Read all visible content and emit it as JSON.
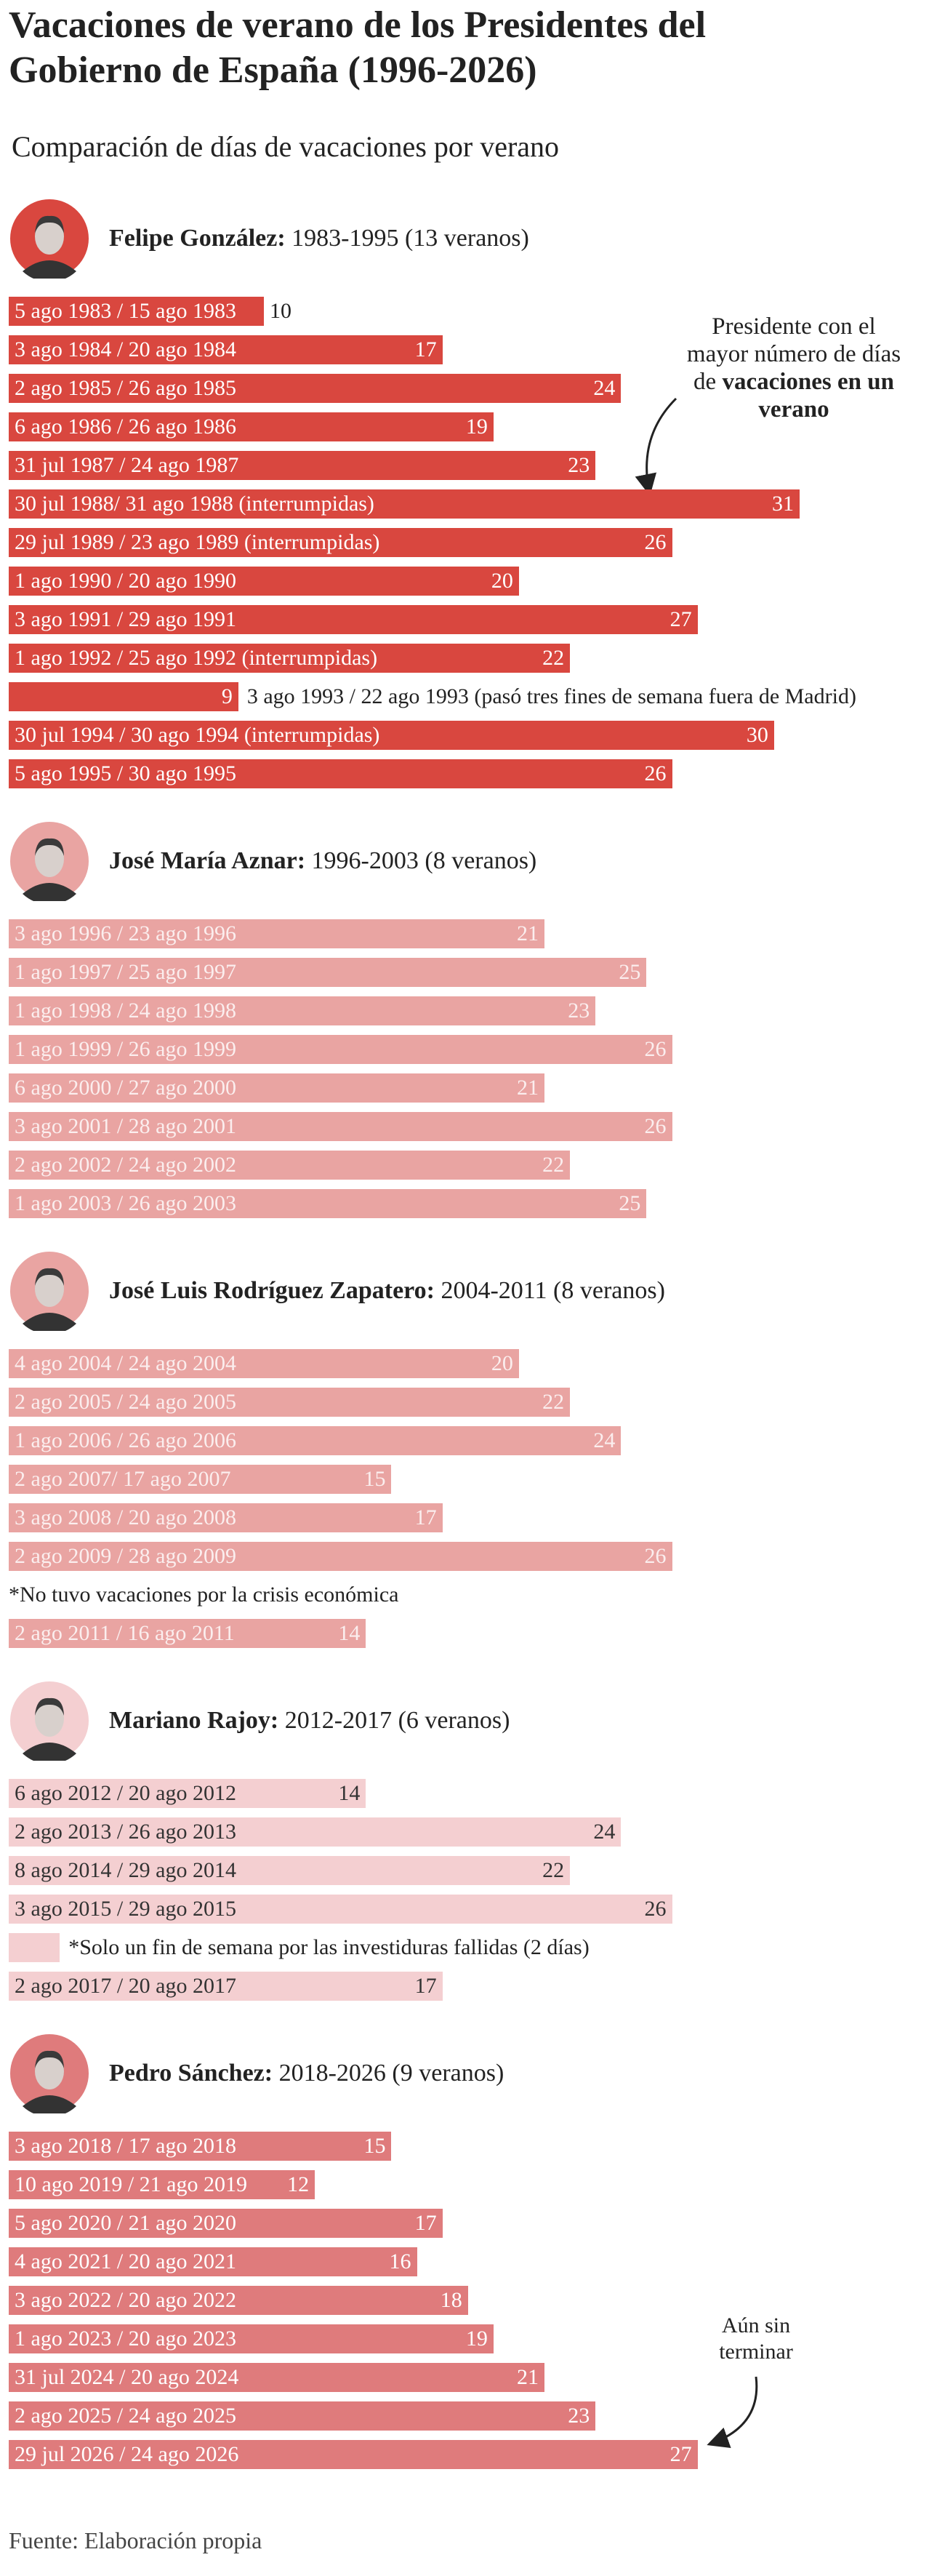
{
  "chart_data": {
    "type": "bar",
    "orientation": "horizontal",
    "title": "Vacaciones de verano de los Presidentes del Gobierno de España (1996-2026)",
    "subtitle": "Comparación de días de vacaciones por verano",
    "source": "Fuente: Elaboración propia",
    "groups": [
      {
        "name": "Felipe González:",
        "period": "1983-1995 (13 veranos)",
        "color": "#d9473f",
        "label_color": "#ffffff",
        "labels": [
          "5 ago 1983 / 15 ago 1983",
          "3 ago 1984 / 20 ago 1984",
          "2 ago 1985 / 26 ago 1985",
          "6 ago 1986 / 26 ago 1986",
          "31 jul 1987 / 24 ago 1987",
          "30 jul 1988/ 31 ago 1988 (interrumpidas)",
          "29 jul 1989 / 23 ago 1989 (interrumpidas)",
          "1 ago 1990 / 20 ago 1990",
          "3 ago 1991 / 29 ago 1991",
          "1 ago 1992 / 25 ago 1992 (interrumpidas)",
          "3 ago 1993 / 22 ago 1993 (pasó tres fines de semana fuera de Madrid)",
          "30 jul 1994 / 30 ago 1994 (interrumpidas)",
          "5 ago 1995 / 30 ago 1995"
        ],
        "values": [
          10,
          17,
          24,
          19,
          23,
          31,
          26,
          20,
          27,
          22,
          9,
          30,
          26
        ]
      },
      {
        "name": "José María Aznar:",
        "period": "1996-2003 (8 veranos)",
        "color": "#e9a4a2",
        "label_color": "#fbeeee",
        "labels": [
          "3 ago 1996 / 23 ago 1996",
          "1 ago 1997 / 25 ago 1997",
          "1 ago 1998 / 24 ago 1998",
          "1 ago 1999 / 26 ago 1999",
          "6 ago 2000 / 27 ago 2000",
          "3 ago 2001 / 28 ago 2001",
          "2 ago 2002 / 24 ago 2002",
          "1 ago 2003 / 26 ago 2003"
        ],
        "values": [
          21,
          25,
          23,
          26,
          21,
          26,
          22,
          25
        ]
      },
      {
        "name": "José Luis Rodríguez Zapatero:",
        "period": "2004-2011 (8 veranos)",
        "color": "#e9a4a2",
        "label_color": "#fbeeee",
        "labels": [
          "4 ago 2004 / 24 ago 2004",
          "2 ago 2005 / 24 ago 2005",
          "1 ago 2006 / 26 ago 2006",
          "2 ago 2007/ 17 ago 2007",
          "3 ago 2008 / 20 ago 2008",
          "2 ago 2009 / 28 ago 2009",
          "*No tuvo vacaciones por la crisis económica",
          "2 ago 2011 / 16 ago 2011"
        ],
        "values": [
          20,
          22,
          24,
          15,
          17,
          26,
          null,
          14
        ]
      },
      {
        "name": "Mariano Rajoy:",
        "period": "2012-2017 (6 veranos)",
        "color": "#f4cfd1",
        "label_color": "#333333",
        "labels": [
          "6 ago 2012 / 20 ago 2012",
          "2 ago 2013 / 26 ago 2013",
          "8 ago 2014 / 29 ago 2014",
          "3 ago 2015 / 29 ago 2015",
          "*Solo un fin de semana por las investiduras fallidas (2 días)",
          "2 ago 2017 / 20 ago 2017"
        ],
        "values": [
          14,
          24,
          22,
          26,
          2,
          17
        ],
        "value_labels": [
          "14",
          "24",
          "22",
          "26",
          null,
          "17"
        ]
      },
      {
        "name": "Pedro Sánchez:",
        "period": "2018-2026 (9 veranos)",
        "color": "#df7b7c",
        "label_color": "#ffffff",
        "labels": [
          "3 ago 2018 / 17 ago 2018",
          "10 ago 2019 / 21 ago 2019",
          "5 ago 2020 / 21 ago 2020",
          "4 ago 2021 / 20 ago 2021",
          "3 ago 2022 / 20 ago 2022",
          "1 ago 2023 / 20 ago 2023",
          "31 jul 2024 / 20 ago 2024",
          "2 ago 2025 / 24 ago 2025",
          "29 jul 2026 / 24 ago 2026"
        ],
        "values": [
          15,
          12,
          17,
          16,
          18,
          19,
          21,
          23,
          27
        ]
      }
    ],
    "annotations": [
      {
        "text": "Presidente con el mayor número de días de",
        "bold": "vacaciones en un verano"
      },
      {
        "text": "Aún sin terminar"
      }
    ]
  }
}
